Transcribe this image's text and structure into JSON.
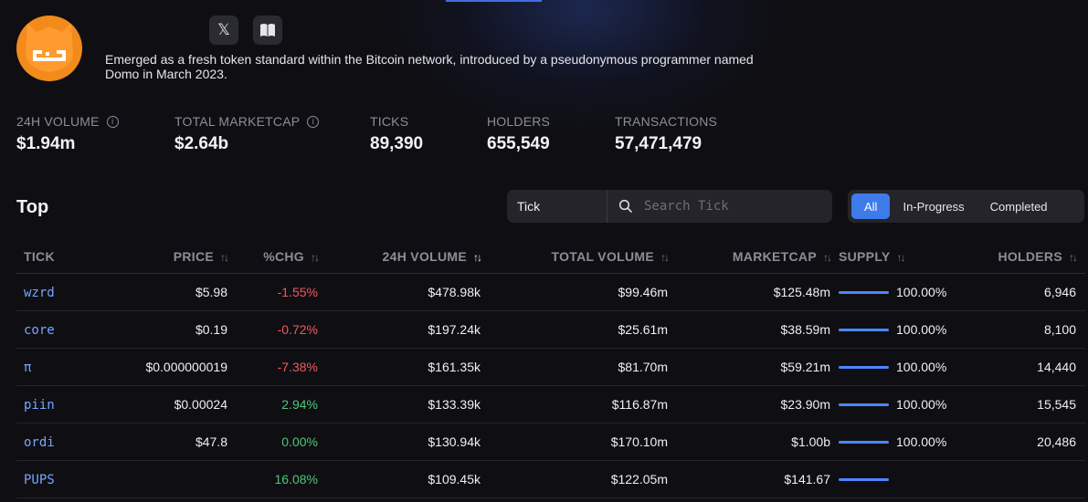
{
  "token": {
    "logo_name": "brc20-logo",
    "description": "Emerged as a fresh token standard within the Bitcoin network, introduced by a pseudonymous programmer named Domo in March 2023."
  },
  "social": {
    "x_glyph": "𝕏",
    "docs_glyph": "▮▮"
  },
  "stats": [
    {
      "label": "24H VOLUME",
      "value": "$1.94m",
      "info": true
    },
    {
      "label": "TOTAL MARKETCAP",
      "value": "$2.64b",
      "info": true
    },
    {
      "label": "TICKS",
      "value": "89,390",
      "info": false
    },
    {
      "label": "HOLDERS",
      "value": "655,549",
      "info": false
    },
    {
      "label": "TRANSACTIONS",
      "value": "57,471,479",
      "info": false
    }
  ],
  "section": {
    "title": "Top"
  },
  "search": {
    "select_label": "Tick",
    "placeholder": "Search Tick"
  },
  "filters": [
    "All",
    "In-Progress",
    "Completed"
  ],
  "active_filter": "All",
  "table": {
    "columns": [
      "TICK",
      "PRICE",
      "%CHG",
      "24H VOLUME",
      "TOTAL VOLUME",
      "MARKETCAP",
      "SUPPLY",
      "HOLDERS"
    ],
    "sort_glyph": "↑↓",
    "rows": [
      {
        "tick": "wzrd",
        "price": "$5.98",
        "chg": "-1.55%",
        "chg_dir": "neg",
        "vol24": "$478.98k",
        "total_vol": "$99.46m",
        "mcap": "$125.48m",
        "supply_pct": 100,
        "supply": "100.00%",
        "holders": "6,946"
      },
      {
        "tick": "core",
        "price": "$0.19",
        "chg": "-0.72%",
        "chg_dir": "neg",
        "vol24": "$197.24k",
        "total_vol": "$25.61m",
        "mcap": "$38.59m",
        "supply_pct": 100,
        "supply": "100.00%",
        "holders": "8,100"
      },
      {
        "tick": "π",
        "price": "$0.000000019",
        "chg": "-7.38%",
        "chg_dir": "neg",
        "vol24": "$161.35k",
        "total_vol": "$81.70m",
        "mcap": "$59.21m",
        "supply_pct": 100,
        "supply": "100.00%",
        "holders": "14,440"
      },
      {
        "tick": "piin",
        "price": "$0.00024",
        "chg": "2.94%",
        "chg_dir": "pos",
        "vol24": "$133.39k",
        "total_vol": "$116.87m",
        "mcap": "$23.90m",
        "supply_pct": 100,
        "supply": "100.00%",
        "holders": "15,545"
      },
      {
        "tick": "ordi",
        "price": "$47.8",
        "chg": "0.00%",
        "chg_dir": "pos",
        "vol24": "$130.94k",
        "total_vol": "$170.10m",
        "mcap": "$1.00b",
        "supply_pct": 100,
        "supply": "100.00%",
        "holders": "20,486"
      },
      {
        "tick": "PUPS",
        "price": "",
        "chg": "16.08%",
        "chg_dir": "pos",
        "vol24": "$109.45k",
        "total_vol": "$122.05m",
        "mcap": "$141.67",
        "supply_pct": 100,
        "supply": "",
        "holders": ""
      }
    ]
  },
  "colors": {
    "accent": "#3e7bea",
    "negative": "#ef5a5a",
    "positive": "#4fc57a",
    "tick_link": "#78a5ff",
    "logo": "#f28a1c"
  }
}
